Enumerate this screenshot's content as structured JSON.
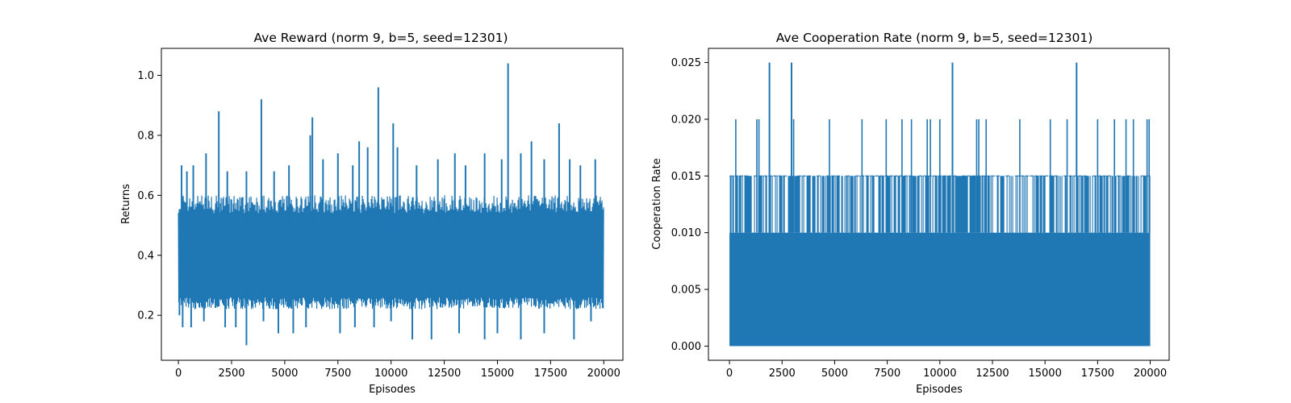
{
  "chart_data": [
    {
      "type": "line",
      "title": "Ave Reward (norm 9, b=5, seed=12301)",
      "xlabel": "Episodes",
      "ylabel": "Returns",
      "xlim": [
        -800,
        20900
      ],
      "ylim": [
        0.05,
        1.09
      ],
      "xticks": [
        0,
        2500,
        5000,
        7500,
        10000,
        12500,
        15000,
        17500,
        20000
      ],
      "xtick_labels": [
        "0",
        "2500",
        "5000",
        "7500",
        "10000",
        "12500",
        "15000",
        "17500",
        "20000"
      ],
      "yticks": [
        0.2,
        0.4,
        0.6,
        0.8,
        1.0
      ],
      "ytick_labels": [
        "0.2",
        "0.4",
        "0.6",
        "0.8",
        "1.0"
      ],
      "grid": false,
      "color": "#1f77b4",
      "series": [
        {
          "x_range": [
            0,
            20000
          ],
          "band_low": 0.22,
          "band_high": 0.6,
          "body_low": 0.26,
          "body_high": 0.54,
          "spikes": [
            [
              150,
              0.7
            ],
            [
              400,
              0.68
            ],
            [
              700,
              0.7
            ],
            [
              1300,
              0.74
            ],
            [
              1900,
              0.88
            ],
            [
              2300,
              0.68
            ],
            [
              3200,
              0.68
            ],
            [
              3900,
              0.92
            ],
            [
              4500,
              0.68
            ],
            [
              5200,
              0.7
            ],
            [
              6200,
              0.8
            ],
            [
              6300,
              0.86
            ],
            [
              6800,
              0.72
            ],
            [
              7500,
              0.74
            ],
            [
              8200,
              0.7
            ],
            [
              8500,
              0.78
            ],
            [
              8900,
              0.76
            ],
            [
              9400,
              0.96
            ],
            [
              10100,
              0.84
            ],
            [
              10300,
              0.76
            ],
            [
              11200,
              0.7
            ],
            [
              12200,
              0.72
            ],
            [
              13000,
              0.74
            ],
            [
              13500,
              0.7
            ],
            [
              14400,
              0.74
            ],
            [
              15200,
              0.72
            ],
            [
              15500,
              1.04
            ],
            [
              16100,
              0.74
            ],
            [
              16600,
              0.78
            ],
            [
              17200,
              0.72
            ],
            [
              17900,
              0.84
            ],
            [
              18400,
              0.72
            ],
            [
              18900,
              0.7
            ],
            [
              19600,
              0.72
            ]
          ],
          "dips": [
            [
              50,
              0.2
            ],
            [
              200,
              0.16
            ],
            [
              600,
              0.16
            ],
            [
              1200,
              0.18
            ],
            [
              2200,
              0.16
            ],
            [
              2700,
              0.16
            ],
            [
              3200,
              0.1
            ],
            [
              4000,
              0.18
            ],
            [
              4700,
              0.14
            ],
            [
              5400,
              0.14
            ],
            [
              6000,
              0.16
            ],
            [
              7600,
              0.14
            ],
            [
              8300,
              0.16
            ],
            [
              9200,
              0.16
            ],
            [
              10000,
              0.18
            ],
            [
              11000,
              0.12
            ],
            [
              11900,
              0.12
            ],
            [
              13200,
              0.14
            ],
            [
              14400,
              0.12
            ],
            [
              15000,
              0.14
            ],
            [
              16100,
              0.12
            ],
            [
              17200,
              0.14
            ],
            [
              18600,
              0.12
            ],
            [
              19400,
              0.18
            ]
          ]
        }
      ]
    },
    {
      "type": "line",
      "title": "Ave Cooperation Rate (norm 9, b=5, seed=12301)",
      "xlabel": "Episodes",
      "ylabel": "Cooperation Rate",
      "xlim": [
        -1000,
        20900
      ],
      "ylim": [
        -0.00125,
        0.02625
      ],
      "xticks": [
        0,
        2500,
        5000,
        7500,
        10000,
        12500,
        15000,
        17500,
        20000
      ],
      "xtick_labels": [
        "0",
        "2500",
        "5000",
        "7500",
        "10000",
        "12500",
        "15000",
        "17500",
        "20000"
      ],
      "yticks": [
        0.0,
        0.005,
        0.01,
        0.015,
        0.02,
        0.025
      ],
      "ytick_labels": [
        "0.000",
        "0.005",
        "0.010",
        "0.015",
        "0.020",
        "0.025"
      ],
      "grid": false,
      "color": "#1f77b4",
      "series": [
        {
          "x_range": [
            0,
            20000
          ],
          "fill_low": 0.0,
          "fill_high": 0.01,
          "spikes_025": [
            1900,
            2950,
            10600,
            16500
          ],
          "spikes_020": [
            300,
            1300,
            1400,
            3050,
            4750,
            6300,
            7450,
            8200,
            8650,
            9400,
            9550,
            10000,
            11750,
            11850,
            12200,
            13800,
            15250,
            16050,
            17500,
            18300,
            18850,
            19200,
            19850,
            19950
          ],
          "dense_015_from": 0,
          "dense_015_to": 20000
        }
      ]
    }
  ]
}
